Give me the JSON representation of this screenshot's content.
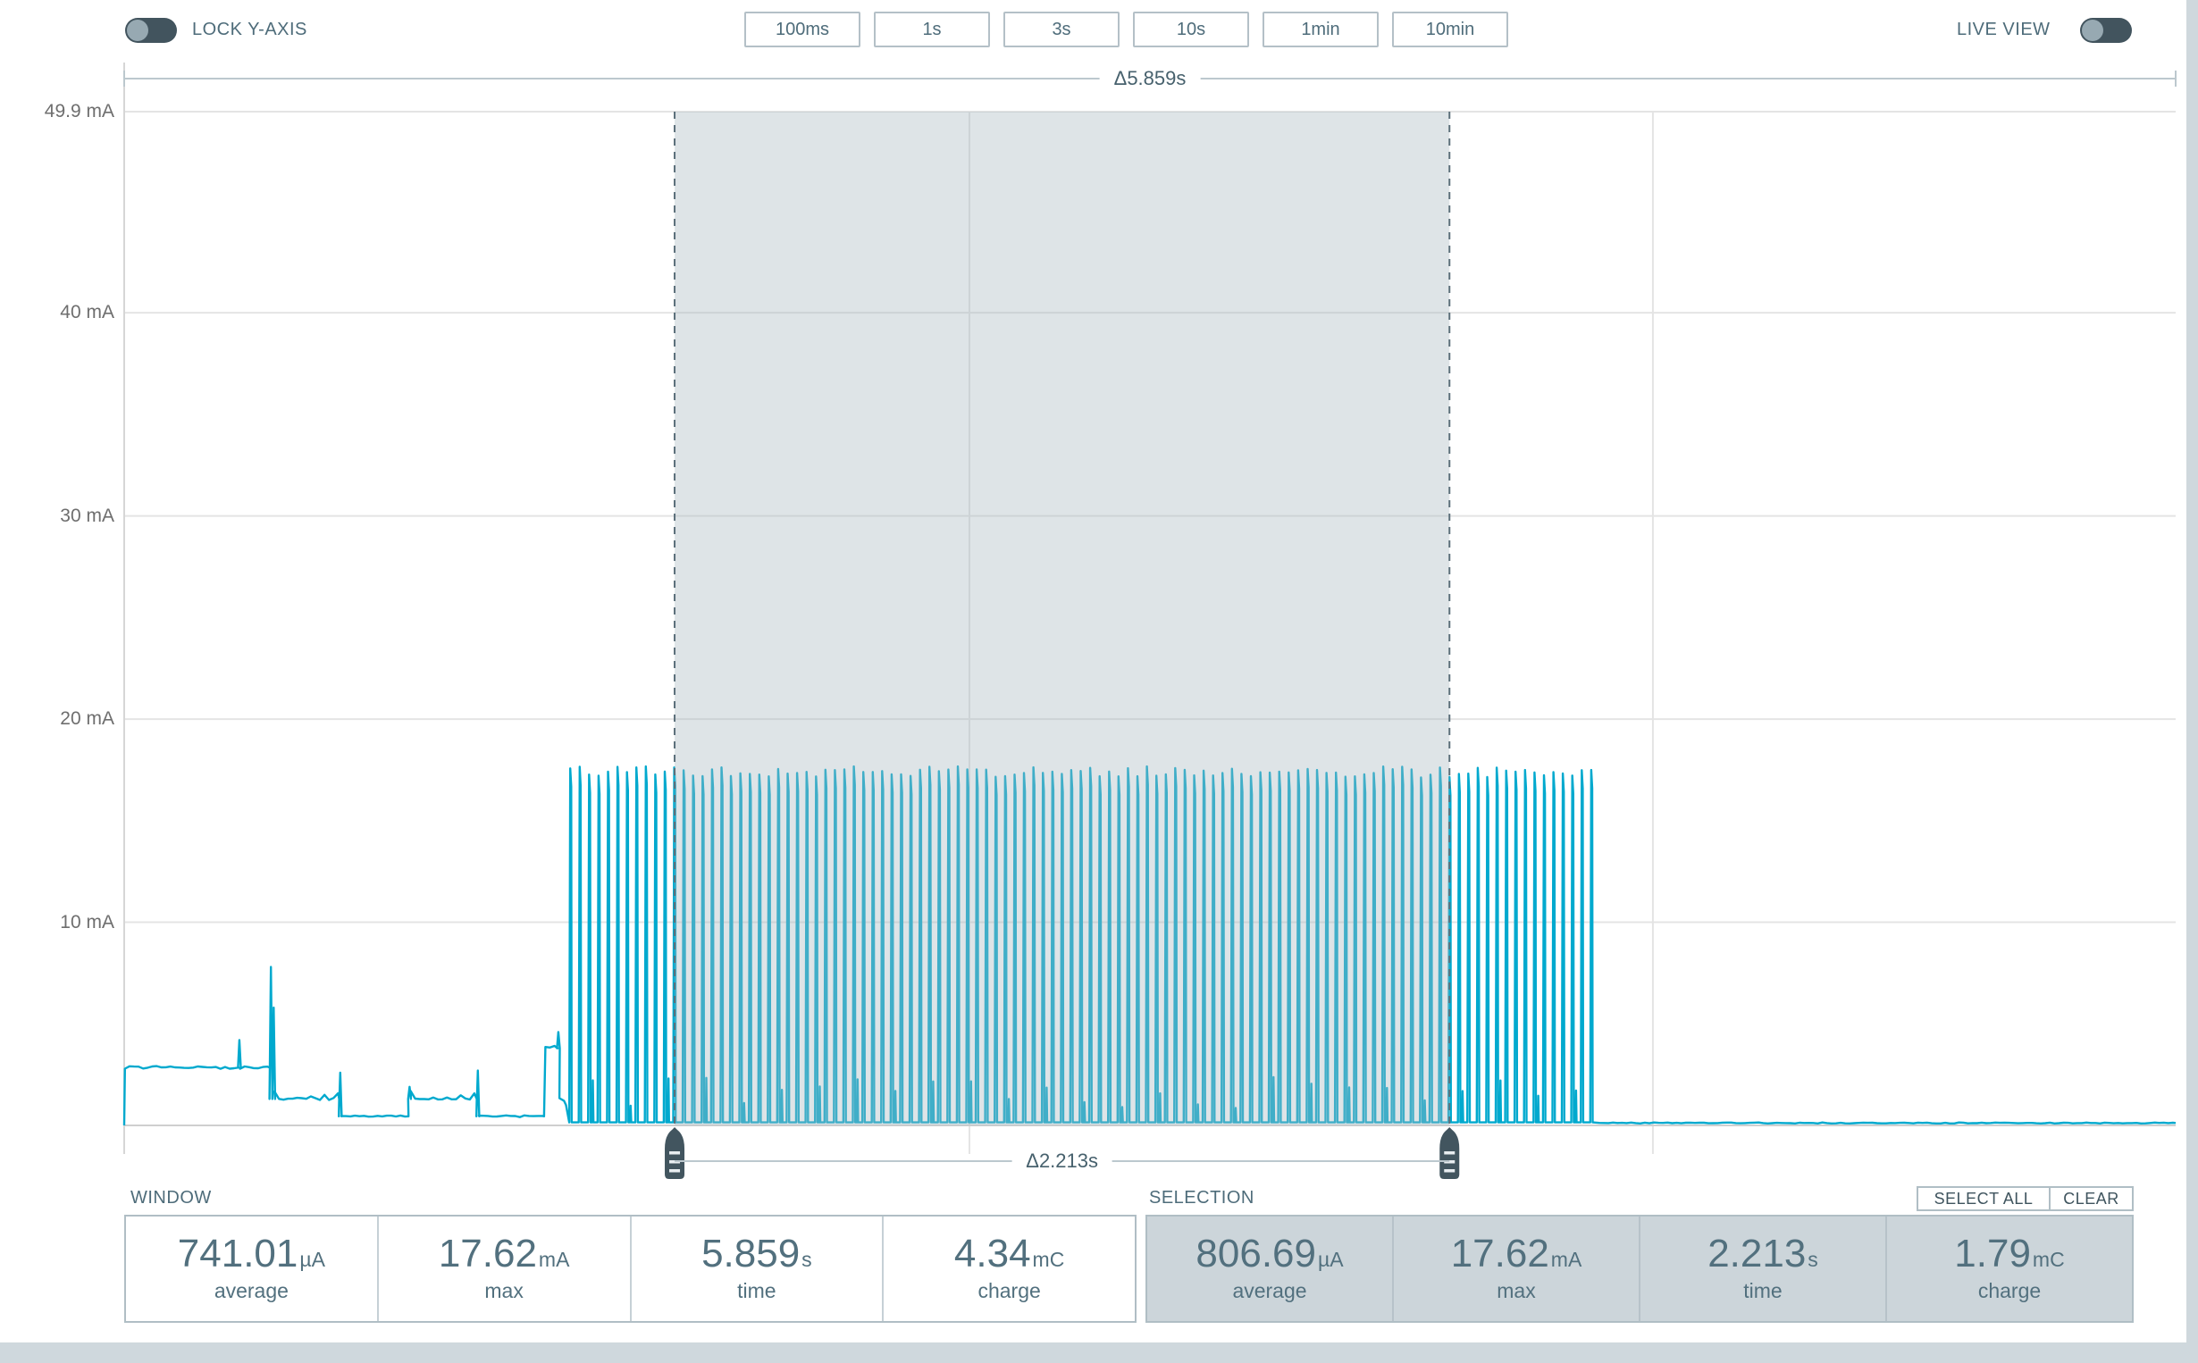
{
  "toolbar": {
    "lock_y_axis_label": "LOCK Y-AXIS",
    "live_view_label": "LIVE VIEW",
    "range_buttons": [
      "100ms",
      "1s",
      "3s",
      "10s",
      "1min",
      "10min"
    ]
  },
  "window_panel": {
    "title": "WINDOW",
    "stats": [
      {
        "value": "741.01",
        "unit": "µA",
        "label": "average"
      },
      {
        "value": "17.62",
        "unit": "mA",
        "label": "max"
      },
      {
        "value": "5.859",
        "unit": "s",
        "label": "time"
      },
      {
        "value": "4.34",
        "unit": "mC",
        "label": "charge"
      }
    ]
  },
  "selection_panel": {
    "title": "SELECTION",
    "select_all_label": "SELECT ALL",
    "clear_label": "CLEAR",
    "stats": [
      {
        "value": "806.69",
        "unit": "µA",
        "label": "average"
      },
      {
        "value": "17.62",
        "unit": "mA",
        "label": "max"
      },
      {
        "value": "2.213",
        "unit": "s",
        "label": "time"
      },
      {
        "value": "1.79",
        "unit": "mC",
        "label": "charge"
      }
    ]
  },
  "chart_data": {
    "type": "line",
    "series_name": "current",
    "unit": "mA",
    "window_s": 5.859,
    "window_delta_label": "Δ5.859s",
    "line_color": "#00a9ce",
    "y_axis": {
      "ylim": [
        0,
        49.9
      ],
      "ticks": [
        {
          "mA": 49.9,
          "label": "49.9 mA"
        },
        {
          "mA": 40,
          "label": "40 mA"
        },
        {
          "mA": 30,
          "label": "30 mA"
        },
        {
          "mA": 20,
          "label": "20 mA"
        },
        {
          "mA": 10,
          "label": "10 mA"
        }
      ]
    },
    "x_gridlines_s": [
      2.414,
      4.366
    ],
    "selection": {
      "start_s": 1.572,
      "end_s": 3.785,
      "delta_label": "Δ2.213s"
    },
    "segments": [
      {
        "type": "flat",
        "t0": 0.002,
        "t1": 0.327,
        "level": 2.85,
        "noise": 0.07
      },
      {
        "type": "spike",
        "t": 0.329,
        "base": 2.85,
        "peak": 4.2
      },
      {
        "type": "flat",
        "t0": 0.331,
        "t1": 0.416,
        "level": 2.85,
        "noise": 0.07
      },
      {
        "type": "spike",
        "t": 0.419,
        "base": 1.3,
        "peak": 7.8
      },
      {
        "type": "spike",
        "t": 0.427,
        "base": 1.3,
        "peak": 5.8
      },
      {
        "type": "flat",
        "t0": 0.429,
        "t1": 0.614,
        "level": 1.3,
        "noise": 0.05,
        "ripple": {
          "every": 0.02,
          "amp": 0.4
        }
      },
      {
        "type": "spike",
        "t": 0.617,
        "base": 0.45,
        "peak": 2.6
      },
      {
        "type": "flat",
        "t0": 0.62,
        "t1": 0.812,
        "level": 0.45,
        "noise": 0.05
      },
      {
        "type": "spike",
        "t": 0.815,
        "base": 1.3,
        "peak": 1.9
      },
      {
        "type": "flat",
        "t0": 0.818,
        "t1": 1.007,
        "level": 1.3,
        "noise": 0.05,
        "ripple": {
          "every": 0.02,
          "amp": 0.4
        }
      },
      {
        "type": "spike",
        "t": 1.01,
        "base": 0.45,
        "peak": 2.7
      },
      {
        "type": "flat",
        "t0": 1.013,
        "t1": 1.199,
        "level": 0.45,
        "noise": 0.05
      },
      {
        "type": "flat",
        "t0": 1.203,
        "t1": 1.238,
        "level": 3.8,
        "noise": 0.12
      },
      {
        "type": "spike",
        "t": 1.24,
        "base": 3.8,
        "peak": 4.6
      },
      {
        "type": "flat",
        "t0": 1.243,
        "t1": 1.262,
        "level": 1.0,
        "noise": 0.85
      },
      {
        "type": "burst",
        "t0": 1.271,
        "t1": 4.205,
        "base": 0.15,
        "peak": 17.4,
        "period": 0.027,
        "peak_jitter": 0.55,
        "minor_peak": 1.6,
        "minor_every": 4
      },
      {
        "type": "flat",
        "t0": 4.213,
        "t1": 5.859,
        "level": 0.12,
        "noise": 0.025
      }
    ]
  }
}
